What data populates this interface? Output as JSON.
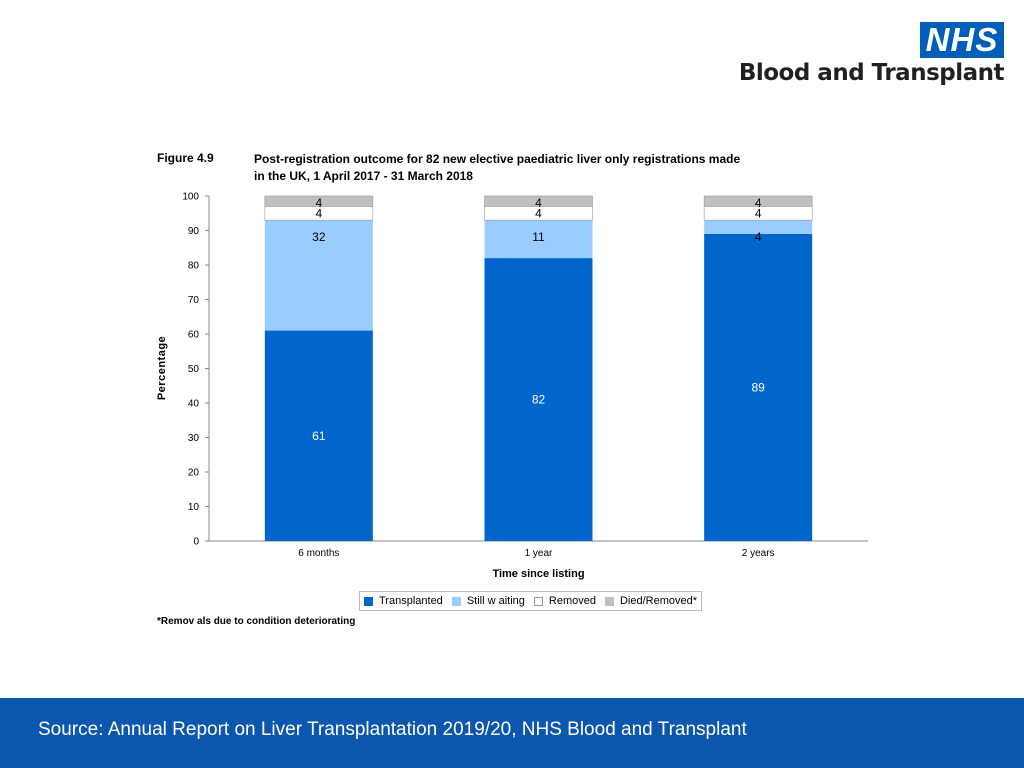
{
  "logo": {
    "badge": "NHS",
    "org": "Blood and Transplant"
  },
  "figure": {
    "label": "Figure 4.9",
    "title": "Post-registration outcome for 82 new elective paediatric liver only registrations made\n in the UK, 1 April 2017 - 31 March 2018"
  },
  "chart_data": {
    "type": "bar",
    "stacked": true,
    "categories": [
      "6 months",
      "1 year",
      "2 years"
    ],
    "series": [
      {
        "name": "Transplanted",
        "values": [
          61,
          82,
          89
        ],
        "color": "#0066cc"
      },
      {
        "name": "Still waiting",
        "values": [
          32,
          11,
          4
        ],
        "color": "#99ccff"
      },
      {
        "name": "Removed",
        "values": [
          4,
          4,
          4
        ],
        "color": "#ffffff"
      },
      {
        "name": "Died/Removed*",
        "values": [
          4,
          4,
          4
        ],
        "color": "#c0c0c0"
      }
    ],
    "ylabel": "Percentage",
    "xlabel": "Time since listing",
    "ylim": [
      0,
      100
    ],
    "yticks": [
      0,
      10,
      20,
      30,
      40,
      50,
      60,
      70,
      80,
      90,
      100
    ],
    "legend_position": "bottom"
  },
  "legend": {
    "items": [
      "Transplanted",
      "Still w aiting",
      "Removed",
      "Died/Removed*"
    ]
  },
  "footnote": "*Remov als due to condition deteriorating",
  "footer": {
    "source": "Source: Annual Report on Liver Transplantation 2019/20, NHS Blood and Transplant"
  }
}
